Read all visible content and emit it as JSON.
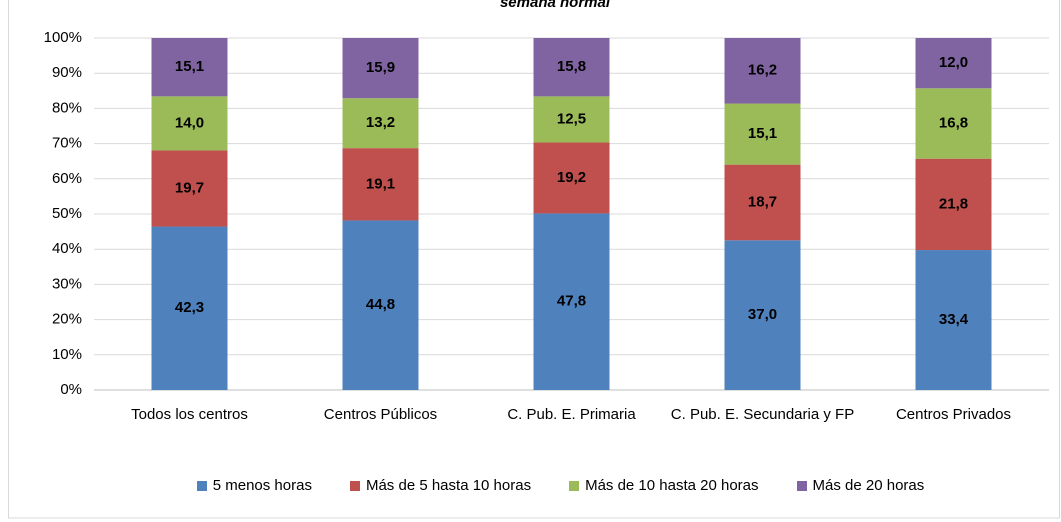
{
  "chart_data": {
    "type": "bar",
    "stack": "percent",
    "title": "semana normal",
    "categories": [
      "Todos los centros",
      "Centros Públicos",
      "C. Pub. E. Primaria",
      "C. Pub. E. Secundaria y FP",
      "Centros Privados"
    ],
    "series": [
      {
        "name": "5 menos horas",
        "color": "#4f81bd",
        "values": [
          42.3,
          44.8,
          47.8,
          37.0,
          33.4
        ],
        "value_labels": [
          "42,3",
          "44,8",
          "47,8",
          "37,0",
          "33,4"
        ]
      },
      {
        "name": "Más de 5 hasta 10 horas",
        "color": "#c0504d",
        "values": [
          19.7,
          19.1,
          19.2,
          18.7,
          21.8
        ],
        "value_labels": [
          "19,7",
          "19,1",
          "19,2",
          "18,7",
          "21,8"
        ]
      },
      {
        "name": "Más de 10 hasta 20 horas",
        "color": "#9bbb59",
        "values": [
          14.0,
          13.2,
          12.5,
          15.1,
          16.8
        ],
        "value_labels": [
          "14,0",
          "13,2",
          "12,5",
          "15,1",
          "16,8"
        ]
      },
      {
        "name": "Más de 20 horas",
        "color": "#8064a2",
        "values": [
          15.1,
          15.9,
          15.8,
          16.2,
          12.0
        ],
        "value_labels": [
          "15,1",
          "15,9",
          "15,8",
          "16,2",
          "12,0"
        ]
      }
    ],
    "ylim": [
      0,
      100
    ],
    "yticks": [
      {
        "value": 0,
        "label": "0%"
      },
      {
        "value": 10,
        "label": "10%"
      },
      {
        "value": 20,
        "label": "20%"
      },
      {
        "value": 30,
        "label": "30%"
      },
      {
        "value": 40,
        "label": "40%"
      },
      {
        "value": 50,
        "label": "50%"
      },
      {
        "value": 60,
        "label": "60%"
      },
      {
        "value": 70,
        "label": "70%"
      },
      {
        "value": 80,
        "label": "80%"
      },
      {
        "value": 90,
        "label": "90%"
      },
      {
        "value": 100,
        "label": "100%"
      }
    ],
    "grid": true,
    "legend": "bottom"
  }
}
